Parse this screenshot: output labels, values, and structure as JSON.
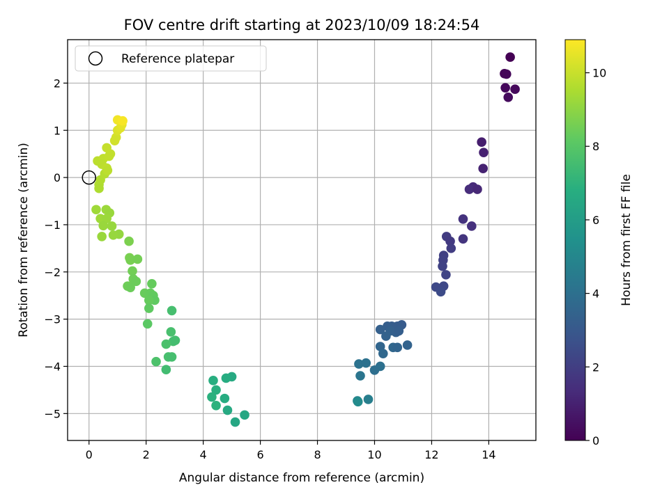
{
  "chart_data": {
    "type": "scatter",
    "title": "FOV centre drift starting at 2023/10/09 18:24:54",
    "xlabel": "Angular distance from reference (arcmin)",
    "ylabel": "Rotation from reference (arcmin)",
    "xlim": [
      -0.75,
      15.65
    ],
    "ylim": [
      -5.57,
      2.92
    ],
    "xticks": [
      0,
      2,
      4,
      6,
      8,
      10,
      12,
      14
    ],
    "yticks": [
      -5,
      -4,
      -3,
      -2,
      -1,
      0,
      1,
      2
    ],
    "grid": true,
    "legend": {
      "position": "top-left",
      "entries": [
        "Reference platepar"
      ]
    },
    "reference_point": {
      "x": 0,
      "y": 0,
      "label": "Reference platepar",
      "marker": "open-circle"
    },
    "colorbar": {
      "label": "Hours from first FF file",
      "colormap": "viridis",
      "range": [
        0,
        10.9
      ],
      "ticks": [
        0,
        2,
        4,
        6,
        8,
        10
      ]
    },
    "series": [
      {
        "colored_by": "Hours from first FF file",
        "points": [
          {
            "x": 14.75,
            "y": 2.55,
            "c": 0.0
          },
          {
            "x": 14.55,
            "y": 2.2,
            "c": 0.1
          },
          {
            "x": 14.62,
            "y": 2.19,
            "c": 0.15
          },
          {
            "x": 14.58,
            "y": 1.9,
            "c": 0.2
          },
          {
            "x": 14.92,
            "y": 1.87,
            "c": 0.25
          },
          {
            "x": 14.68,
            "y": 1.7,
            "c": 0.3
          },
          {
            "x": 13.75,
            "y": 0.75,
            "c": 0.9
          },
          {
            "x": 13.82,
            "y": 0.53,
            "c": 1.0
          },
          {
            "x": 13.8,
            "y": 0.19,
            "c": 1.05
          },
          {
            "x": 13.45,
            "y": -0.2,
            "c": 1.3
          },
          {
            "x": 13.32,
            "y": -0.25,
            "c": 1.35
          },
          {
            "x": 13.6,
            "y": -0.25,
            "c": 1.2
          },
          {
            "x": 13.1,
            "y": -0.88,
            "c": 1.6
          },
          {
            "x": 13.4,
            "y": -1.03,
            "c": 1.5
          },
          {
            "x": 13.1,
            "y": -1.3,
            "c": 1.65
          },
          {
            "x": 12.52,
            "y": -1.25,
            "c": 1.9
          },
          {
            "x": 12.65,
            "y": -1.35,
            "c": 1.85
          },
          {
            "x": 12.68,
            "y": -1.5,
            "c": 1.95
          },
          {
            "x": 12.42,
            "y": -1.65,
            "c": 2.05
          },
          {
            "x": 12.4,
            "y": -1.75,
            "c": 2.1
          },
          {
            "x": 12.38,
            "y": -1.88,
            "c": 2.15
          },
          {
            "x": 12.5,
            "y": -2.06,
            "c": 2.2
          },
          {
            "x": 12.15,
            "y": -2.32,
            "c": 2.4
          },
          {
            "x": 12.42,
            "y": -2.3,
            "c": 2.35
          },
          {
            "x": 12.32,
            "y": -2.42,
            "c": 2.45
          },
          {
            "x": 10.95,
            "y": -3.12,
            "c": 3.1
          },
          {
            "x": 10.8,
            "y": -3.15,
            "c": 3.15
          },
          {
            "x": 10.6,
            "y": -3.15,
            "c": 3.2
          },
          {
            "x": 10.45,
            "y": -3.15,
            "c": 3.25
          },
          {
            "x": 10.2,
            "y": -3.22,
            "c": 3.3
          },
          {
            "x": 10.55,
            "y": -3.25,
            "c": 3.35
          },
          {
            "x": 10.75,
            "y": -3.28,
            "c": 3.3
          },
          {
            "x": 10.85,
            "y": -3.25,
            "c": 3.25
          },
          {
            "x": 10.4,
            "y": -3.36,
            "c": 3.4
          },
          {
            "x": 10.2,
            "y": -3.58,
            "c": 3.55
          },
          {
            "x": 10.65,
            "y": -3.6,
            "c": 3.6
          },
          {
            "x": 10.8,
            "y": -3.6,
            "c": 3.5
          },
          {
            "x": 11.15,
            "y": -3.55,
            "c": 3.45
          },
          {
            "x": 10.3,
            "y": -3.73,
            "c": 3.65
          },
          {
            "x": 9.45,
            "y": -3.95,
            "c": 4.1
          },
          {
            "x": 9.7,
            "y": -3.93,
            "c": 4.05
          },
          {
            "x": 10.2,
            "y": -4.0,
            "c": 4.0
          },
          {
            "x": 10.0,
            "y": -4.08,
            "c": 3.95
          },
          {
            "x": 9.5,
            "y": -4.2,
            "c": 4.2
          },
          {
            "x": 9.78,
            "y": -4.7,
            "c": 4.6
          },
          {
            "x": 9.4,
            "y": -4.73,
            "c": 4.9
          },
          {
            "x": 9.42,
            "y": -4.75,
            "c": 5.2
          },
          {
            "x": 5.0,
            "y": -4.22,
            "c": 6.6
          },
          {
            "x": 4.8,
            "y": -4.25,
            "c": 6.7
          },
          {
            "x": 4.35,
            "y": -4.3,
            "c": 6.8
          },
          {
            "x": 4.45,
            "y": -4.5,
            "c": 6.85
          },
          {
            "x": 4.3,
            "y": -4.65,
            "c": 6.9
          },
          {
            "x": 4.75,
            "y": -4.68,
            "c": 6.7
          },
          {
            "x": 4.45,
            "y": -4.83,
            "c": 6.95
          },
          {
            "x": 4.85,
            "y": -4.93,
            "c": 6.6
          },
          {
            "x": 5.45,
            "y": -5.03,
            "c": 6.5
          },
          {
            "x": 5.12,
            "y": -5.18,
            "c": 6.45
          },
          {
            "x": 2.9,
            "y": -2.82,
            "c": 7.6
          },
          {
            "x": 2.87,
            "y": -3.27,
            "c": 7.65
          },
          {
            "x": 2.95,
            "y": -3.47,
            "c": 7.6
          },
          {
            "x": 3.02,
            "y": -3.45,
            "c": 7.55
          },
          {
            "x": 2.7,
            "y": -3.53,
            "c": 7.7
          },
          {
            "x": 2.78,
            "y": -3.8,
            "c": 7.65
          },
          {
            "x": 2.9,
            "y": -3.8,
            "c": 7.6
          },
          {
            "x": 2.35,
            "y": -3.9,
            "c": 7.75
          },
          {
            "x": 2.7,
            "y": -4.07,
            "c": 7.5
          },
          {
            "x": 2.2,
            "y": -2.25,
            "c": 8.3
          },
          {
            "x": 1.95,
            "y": -2.45,
            "c": 8.35
          },
          {
            "x": 2.15,
            "y": -2.45,
            "c": 8.3
          },
          {
            "x": 2.25,
            "y": -2.5,
            "c": 8.25
          },
          {
            "x": 2.3,
            "y": -2.6,
            "c": 8.2
          },
          {
            "x": 2.1,
            "y": -2.6,
            "c": 8.3
          },
          {
            "x": 2.1,
            "y": -2.77,
            "c": 8.2
          },
          {
            "x": 2.05,
            "y": -3.1,
            "c": 8.1
          },
          {
            "x": 1.4,
            "y": -1.35,
            "c": 8.7
          },
          {
            "x": 1.42,
            "y": -1.7,
            "c": 8.65
          },
          {
            "x": 1.45,
            "y": -1.75,
            "c": 8.6
          },
          {
            "x": 1.7,
            "y": -1.73,
            "c": 8.55
          },
          {
            "x": 1.52,
            "y": -1.98,
            "c": 8.5
          },
          {
            "x": 1.55,
            "y": -2.15,
            "c": 8.45
          },
          {
            "x": 1.65,
            "y": -2.2,
            "c": 8.4
          },
          {
            "x": 1.35,
            "y": -2.3,
            "c": 8.45
          },
          {
            "x": 1.45,
            "y": -2.33,
            "c": 8.4
          },
          {
            "x": 0.25,
            "y": -0.68,
            "c": 9.3
          },
          {
            "x": 0.6,
            "y": -0.68,
            "c": 9.25
          },
          {
            "x": 0.72,
            "y": -0.75,
            "c": 9.2
          },
          {
            "x": 0.4,
            "y": -0.87,
            "c": 9.3
          },
          {
            "x": 0.62,
            "y": -0.87,
            "c": 9.25
          },
          {
            "x": 0.5,
            "y": -1.02,
            "c": 9.2
          },
          {
            "x": 0.8,
            "y": -1.03,
            "c": 9.15
          },
          {
            "x": 1.05,
            "y": -1.2,
            "c": 9.1
          },
          {
            "x": 0.85,
            "y": -1.22,
            "c": 9.15
          },
          {
            "x": 0.45,
            "y": -1.25,
            "c": 9.2
          },
          {
            "x": 0.4,
            "y": -0.05,
            "c": 9.6
          },
          {
            "x": 0.55,
            "y": 0.08,
            "c": 9.65
          },
          {
            "x": 0.35,
            "y": -0.15,
            "c": 9.6
          },
          {
            "x": 0.35,
            "y": -0.23,
            "c": 9.55
          },
          {
            "x": 0.3,
            "y": 0.35,
            "c": 9.8
          },
          {
            "x": 0.5,
            "y": 0.4,
            "c": 9.85
          },
          {
            "x": 0.7,
            "y": 0.45,
            "c": 9.9
          },
          {
            "x": 0.45,
            "y": 0.28,
            "c": 9.8
          },
          {
            "x": 0.62,
            "y": 0.2,
            "c": 9.85
          },
          {
            "x": 0.65,
            "y": 0.15,
            "c": 9.8
          },
          {
            "x": 0.75,
            "y": 0.5,
            "c": 9.9
          },
          {
            "x": 0.62,
            "y": 0.63,
            "c": 9.95
          },
          {
            "x": 0.95,
            "y": 0.85,
            "c": 10.2
          },
          {
            "x": 0.9,
            "y": 0.78,
            "c": 10.15
          },
          {
            "x": 1.0,
            "y": 1.0,
            "c": 10.3
          },
          {
            "x": 1.1,
            "y": 1.05,
            "c": 10.4
          },
          {
            "x": 1.15,
            "y": 1.12,
            "c": 10.5
          },
          {
            "x": 1.0,
            "y": 1.22,
            "c": 10.7
          },
          {
            "x": 1.18,
            "y": 1.2,
            "c": 10.8
          }
        ]
      }
    ]
  }
}
